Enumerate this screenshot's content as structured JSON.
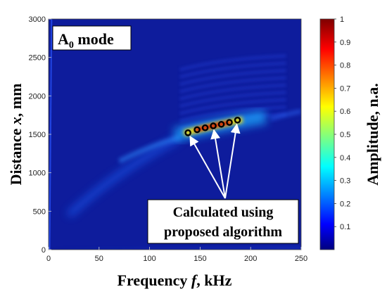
{
  "chart_data": {
    "type": "heatmap",
    "title": "",
    "xlabel": "Frequency f, kHz",
    "xlabel_parts": {
      "pre": "Frequency ",
      "var": "f",
      "post": ", kHz"
    },
    "ylabel": "Distance x, mm",
    "ylabel_parts": {
      "pre": "Distance ",
      "var": "x",
      "post": ", mm"
    },
    "xlim": [
      0,
      250
    ],
    "ylim": [
      0,
      3000
    ],
    "xticks": [
      0,
      50,
      100,
      150,
      200,
      250
    ],
    "yticks": [
      0,
      500,
      1000,
      1500,
      2000,
      2500,
      3000
    ],
    "colorbar": {
      "label": "Amplitude, n.a.",
      "range": [
        0,
        1
      ],
      "ticks": [
        "0.1",
        "0.2",
        "0.3",
        "0.4",
        "0.5",
        "0.6",
        "0.7",
        "0.8",
        "0.9",
        "1"
      ],
      "colormap": "jet"
    },
    "mode_label": {
      "base": "A",
      "sub": "0",
      "rest": " mode"
    },
    "series": [
      {
        "values": [
          {
            "x": 138,
            "y": 1520
          },
          {
            "x": 147,
            "y": 1560
          },
          {
            "x": 155,
            "y": 1585
          },
          {
            "x": 163,
            "y": 1610
          },
          {
            "x": 171,
            "y": 1630
          },
          {
            "x": 179,
            "y": 1655
          },
          {
            "x": 187,
            "y": 1685
          }
        ]
      }
    ],
    "annotation": {
      "lines": [
        "Calculated using",
        "proposed algorithm"
      ],
      "arrow_target_indices": [
        0,
        3,
        6
      ]
    }
  }
}
